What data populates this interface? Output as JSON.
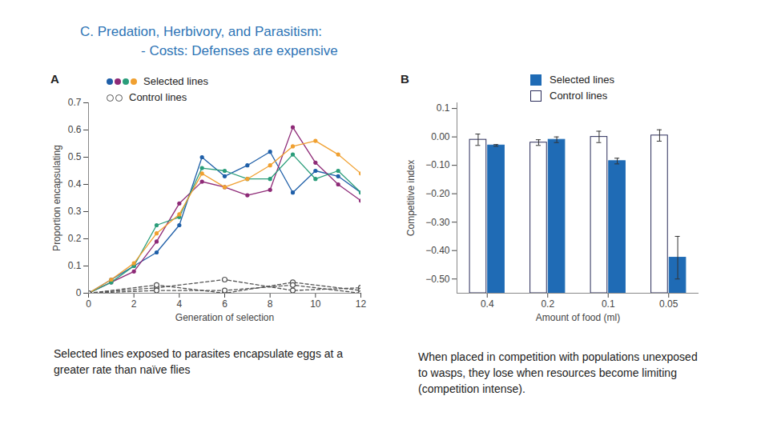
{
  "page": {
    "title": "C. Predation, Herbivory, and Parasitism:",
    "subtitle": "- Costs: Defenses are expensive"
  },
  "chart_data": [
    {
      "panel": "A",
      "type": "line",
      "x_label": "Generation of selection",
      "y_label": "Proportion encapsulating",
      "caption": "Selected lines exposed to parasites encapsulate eggs at a greater rate than naïve flies",
      "x": [
        0,
        1,
        2,
        3,
        4,
        5,
        6,
        7,
        8,
        9,
        10,
        11,
        12
      ],
      "xlim": [
        0,
        12
      ],
      "xticks": [
        0,
        2,
        4,
        6,
        8,
        10,
        12
      ],
      "ylim": [
        0,
        0.7
      ],
      "yticks": [
        0,
        0.1,
        0.2,
        0.3,
        0.4,
        0.5,
        0.6,
        0.7
      ],
      "series": [
        {
          "name": "Selected lines",
          "marker": "dot",
          "line_style": "solid",
          "colors": [
            "#1f5fa8",
            "#8e2a77",
            "#2a9d7a",
            "#f0a030"
          ],
          "values": [
            [
              0,
              0.05,
              0.1,
              0.15,
              0.25,
              0.5,
              0.43,
              0.47,
              0.52,
              0.37,
              0.45,
              0.43,
              0.37
            ],
            [
              0,
              0.04,
              0.08,
              0.19,
              0.33,
              0.41,
              0.39,
              0.36,
              0.38,
              0.61,
              0.48,
              0.4,
              0.34
            ],
            [
              0,
              0.04,
              0.1,
              0.25,
              0.28,
              0.46,
              0.45,
              0.42,
              0.42,
              0.51,
              0.42,
              0.45,
              0.37
            ],
            [
              0,
              0.05,
              0.11,
              0.22,
              0.29,
              0.44,
              0.39,
              0.42,
              0.47,
              0.54,
              0.56,
              0.51,
              0.44
            ]
          ]
        },
        {
          "name": "Control lines",
          "marker": "open_circle",
          "line_style": "dashed",
          "color": "#555555",
          "x": [
            0,
            3,
            6,
            9,
            12
          ],
          "values": [
            [
              0,
              0.02,
              0.05,
              0.01,
              0.02
            ],
            [
              0,
              0.03,
              0,
              0.04,
              0.01
            ],
            [
              0,
              0.01,
              0.01,
              0.03,
              0
            ]
          ]
        }
      ]
    },
    {
      "panel": "B",
      "type": "bar",
      "x_label": "Amount of food (ml)",
      "y_label": "Competitive index",
      "caption": "When placed in competition with populations unexposed to wasps, they lose when resources become limiting (competition intense).",
      "categories": [
        "0.4",
        "0.2",
        "0.1",
        "0.05"
      ],
      "ylim": [
        -0.55,
        0.12
      ],
      "yticks": [
        0.1,
        {
          "value": 0,
          "label": "0.00"
        },
        {
          "value": -0.1,
          "label": "−0.10"
        },
        {
          "value": -0.2,
          "label": "−0.20"
        },
        {
          "value": -0.3,
          "label": "−0.30"
        },
        {
          "value": -0.4,
          "label": "−0.40"
        },
        {
          "value": -0.5,
          "label": "−0.50"
        }
      ],
      "series": [
        {
          "name": "Selected lines",
          "color": "#1f6bb5",
          "values": [
            -0.03,
            -0.01,
            -0.085,
            -0.425
          ],
          "errors": [
            0.003,
            0.01,
            0.01,
            0.075
          ]
        },
        {
          "name": "Control lines",
          "color": "#ffffff",
          "values": [
            -0.01,
            -0.02,
            0,
            0.005
          ],
          "errors": [
            0.02,
            0.01,
            0.02,
            0.02
          ]
        }
      ]
    }
  ]
}
